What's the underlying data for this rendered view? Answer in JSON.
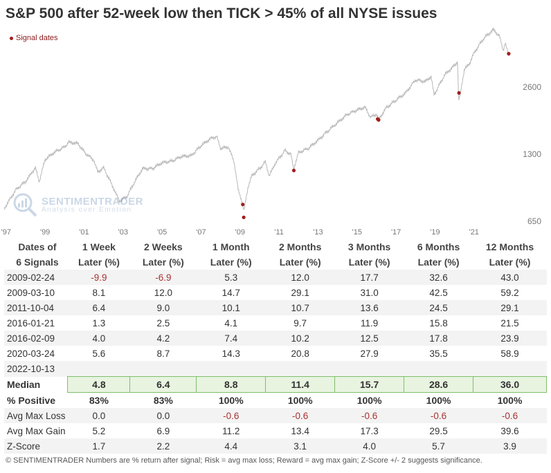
{
  "chart_data": {
    "type": "line",
    "title": "S&P 500 after 52-week low then TICK > 45% of all NYSE issues",
    "legend": "Signal dates",
    "y_scale": "log",
    "ylim": [
      650,
      4800
    ],
    "y_ticks": [
      "650",
      "1300",
      "2600"
    ],
    "y_tick_values": [
      650,
      1300,
      2600
    ],
    "x_ticks": [
      "'97",
      "'99",
      "'01",
      "'03",
      "'05",
      "'07",
      "'09",
      "'11",
      "'13",
      "'15",
      "'17",
      "'19",
      "'21"
    ],
    "x_tick_years": [
      1997,
      1999,
      2001,
      2003,
      2005,
      2007,
      2009,
      2011,
      2013,
      2015,
      2017,
      2019,
      2021
    ],
    "xlim": [
      1996.9,
      2023.6
    ],
    "series": [
      {
        "name": "S&P 500",
        "x": [
          1996.9,
          1997.5,
          1998.0,
          1998.5,
          1998.7,
          1999.0,
          1999.5,
          2000.0,
          2000.2,
          2000.7,
          2001.0,
          2001.5,
          2001.7,
          2002.0,
          2002.5,
          2002.8,
          2003.2,
          2003.6,
          2004.0,
          2004.5,
          2005.0,
          2005.5,
          2006.0,
          2006.5,
          2007.0,
          2007.5,
          2007.8,
          2008.0,
          2008.4,
          2008.7,
          2008.9,
          2009.1,
          2009.2,
          2009.4,
          2009.6,
          2010.0,
          2010.3,
          2010.5,
          2010.8,
          2011.3,
          2011.6,
          2011.75,
          2012.0,
          2012.5,
          2013.0,
          2013.5,
          2014.0,
          2014.5,
          2015.0,
          2015.4,
          2015.7,
          2016.0,
          2016.1,
          2016.5,
          2017.0,
          2017.5,
          2018.0,
          2018.5,
          2018.8,
          2018.95,
          2019.5,
          2020.0,
          2020.15,
          2020.22,
          2020.5,
          2020.8,
          2021.0,
          2021.5,
          2022.0,
          2022.3,
          2022.5,
          2022.6,
          2022.78
        ],
        "y": [
          740,
          900,
          980,
          1130,
          980,
          1230,
          1330,
          1400,
          1470,
          1450,
          1330,
          1220,
          1080,
          1130,
          920,
          800,
          840,
          980,
          1120,
          1120,
          1190,
          1210,
          1270,
          1280,
          1420,
          1530,
          1560,
          1380,
          1400,
          1200,
          900,
          800,
          720,
          920,
          1040,
          1120,
          1200,
          1040,
          1180,
          1350,
          1300,
          1120,
          1320,
          1380,
          1500,
          1650,
          1800,
          1960,
          2050,
          2110,
          1900,
          1970,
          1850,
          2100,
          2270,
          2450,
          2800,
          2750,
          2900,
          2400,
          2950,
          3250,
          3380,
          2237,
          3100,
          3350,
          3700,
          4300,
          4700,
          4400,
          3800,
          4100,
          3580
        ]
      }
    ],
    "signals": [
      {
        "date": "2009-02-24",
        "x": 2009.14,
        "value": 773
      },
      {
        "date": "2009-03-10",
        "x": 2009.19,
        "value": 677
      },
      {
        "date": "2011-10-04",
        "x": 2011.76,
        "value": 1099
      },
      {
        "date": "2016-01-21",
        "x": 2016.06,
        "value": 1869
      },
      {
        "date": "2016-02-09",
        "x": 2016.11,
        "value": 1852
      },
      {
        "date": "2020-03-24",
        "x": 2020.23,
        "value": 2447
      },
      {
        "date": "2022-10-13",
        "x": 2022.78,
        "value": 3670
      }
    ],
    "colors": {
      "line": "#b8b8b8",
      "signal": "#a31d1d",
      "axis": "#777777"
    }
  },
  "watermark": {
    "brand": "SENTIMENTRADER",
    "tagline": "Analysis over Emotion"
  },
  "table": {
    "header_top": [
      "Dates of",
      "1 Week",
      "2 Weeks",
      "1 Month",
      "2 Months",
      "3 Months",
      "6 Months",
      "12 Months"
    ],
    "header_bottom": [
      "6 Signals",
      "Later (%)",
      "Later (%)",
      "Later (%)",
      "Later (%)",
      "Later (%)",
      "Later (%)",
      "Later (%)"
    ],
    "rows": [
      [
        "2009-02-24",
        "-9.9",
        "-6.9",
        "5.3",
        "12.0",
        "17.7",
        "32.6",
        "43.0"
      ],
      [
        "2009-03-10",
        "8.1",
        "12.0",
        "14.7",
        "29.1",
        "31.0",
        "42.5",
        "59.2"
      ],
      [
        "2011-10-04",
        "6.4",
        "9.0",
        "10.1",
        "10.7",
        "13.6",
        "24.5",
        "29.1"
      ],
      [
        "2016-01-21",
        "1.3",
        "2.5",
        "4.1",
        "9.7",
        "11.9",
        "15.8",
        "21.5"
      ],
      [
        "2016-02-09",
        "4.0",
        "4.2",
        "7.4",
        "10.2",
        "12.5",
        "17.8",
        "23.9"
      ],
      [
        "2020-03-24",
        "5.6",
        "8.7",
        "14.3",
        "20.8",
        "27.9",
        "35.5",
        "58.9"
      ],
      [
        "2022-10-13",
        "",
        "",
        "",
        "",
        "",
        "",
        ""
      ]
    ],
    "median": [
      "Median",
      "4.8",
      "6.4",
      "8.8",
      "11.4",
      "15.7",
      "28.6",
      "36.0"
    ],
    "positive": [
      "% Positive",
      "83%",
      "83%",
      "100%",
      "100%",
      "100%",
      "100%",
      "100%"
    ],
    "max_loss": [
      "Avg Max Loss",
      "0.0",
      "0.0",
      "-0.6",
      "-0.6",
      "-0.6",
      "-0.6",
      "-0.6"
    ],
    "max_gain": [
      "Avg Max Gain",
      "5.2",
      "6.9",
      "11.2",
      "13.4",
      "17.3",
      "29.5",
      "39.6"
    ],
    "zscore": [
      "Z-Score",
      "1.7",
      "2.2",
      "4.4",
      "3.1",
      "4.0",
      "5.7",
      "3.9"
    ]
  },
  "footer": "© SENTIMENTRADER  Numbers are % return after signal; Risk = avg max loss; Reward = avg max gain; Z-Score +/- 2 suggests significance."
}
